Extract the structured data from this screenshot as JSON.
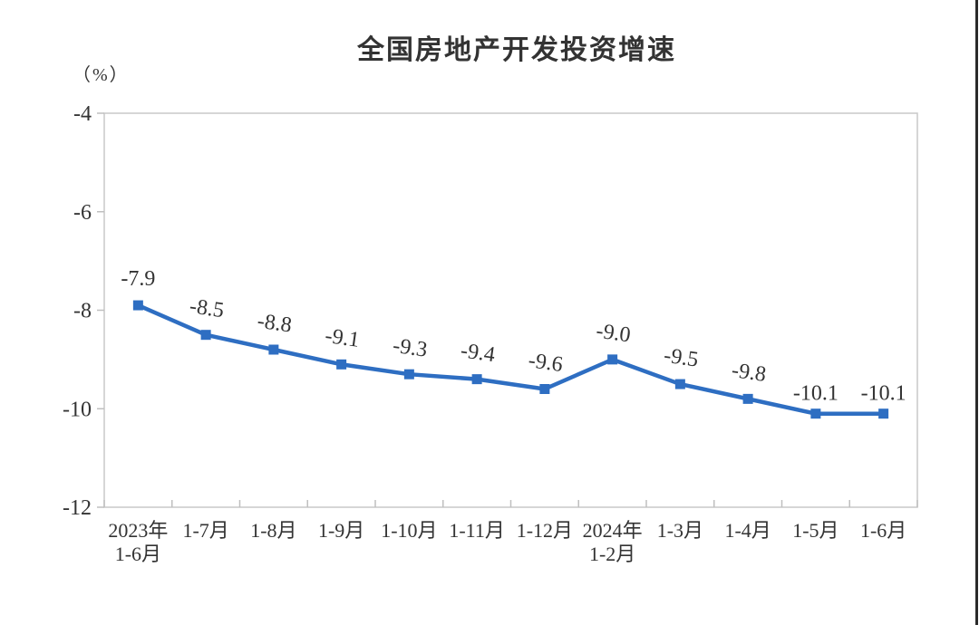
{
  "title": "全国房地产开发投资增速",
  "unit_label": "（%）",
  "colors": {
    "line": "#2E6EC2",
    "axis": "#C9C9C9",
    "tick": "#BFBFBF",
    "text": "#333333"
  },
  "chart_data": {
    "type": "line",
    "title": "全国房地产开发投资增速",
    "ylabel": "（%）",
    "xlabel": "",
    "categories": [
      "2023年\n1-6月",
      "1-7月",
      "1-8月",
      "1-9月",
      "1-10月",
      "1-11月",
      "1-12月",
      "2024年\n1-2月",
      "1-3月",
      "1-4月",
      "1-5月",
      "1-6月"
    ],
    "values": [
      -7.9,
      -8.5,
      -8.8,
      -9.1,
      -9.3,
      -9.4,
      -9.6,
      -9.0,
      -9.5,
      -9.8,
      -10.1,
      -10.1
    ],
    "data_labels": [
      "-7.9",
      "-8.5",
      "-8.8",
      "-9.1",
      "-9.3",
      "-9.4",
      "-9.6",
      "-9.0",
      "-9.5",
      "-9.8",
      "-10.1",
      "-10.1"
    ],
    "yticks": [
      -4,
      -6,
      -8,
      -10,
      -12
    ],
    "ytick_labels": [
      "-4",
      "-6",
      "-8",
      "-10",
      "-12"
    ],
    "ylim": [
      -12,
      -4
    ],
    "grid": false,
    "legend": "none",
    "marker": "square",
    "line_color": "#2E6EC2"
  }
}
